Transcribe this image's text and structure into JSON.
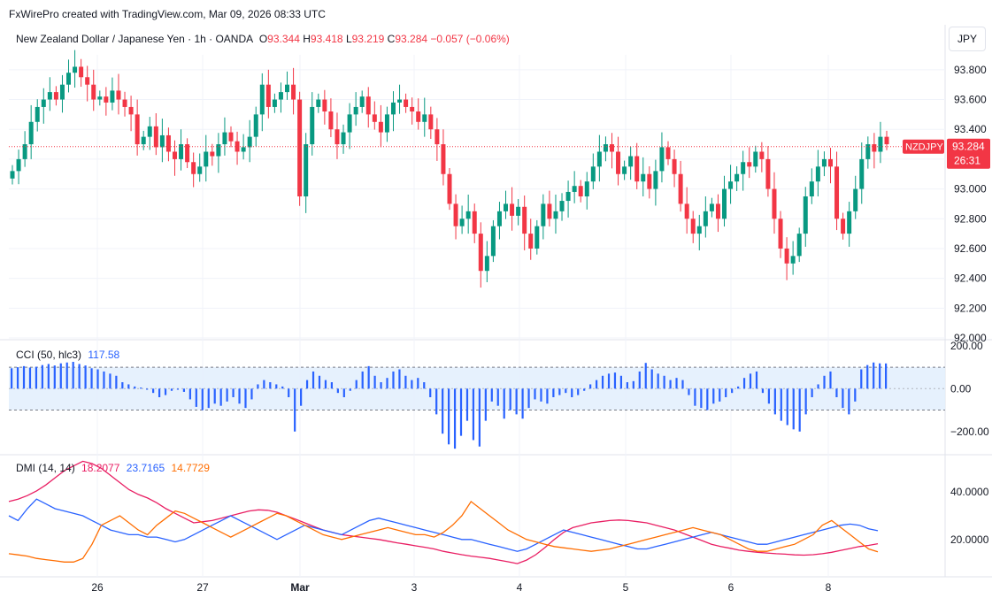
{
  "credit": "FxWirePro created with TradingView.com, Mar 09, 2026 08:33 UTC",
  "header": {
    "symbol": "New Zealand Dollar / Japanese Yen · 1h · OANDA",
    "o_label": "O",
    "o": "93.344",
    "h_label": "H",
    "h": "93.418",
    "l_label": "L",
    "l": "93.219",
    "c_label": "C",
    "c": "93.284",
    "change": "−0.057 (−0.06%)"
  },
  "currency": "JPY",
  "price_tag": {
    "ticker": "NZDJPY",
    "price": "93.284",
    "countdown": "26:31"
  },
  "colors": {
    "up": "#089981",
    "down": "#f23645",
    "cci": "#2962ff",
    "di_plus": "#2962ff",
    "di_minus": "#ff6d00",
    "adx": "#e91e63"
  },
  "cci": {
    "label": "CCI (50, hlc3)",
    "value": "117.58"
  },
  "dmi": {
    "label": "DMI (14, 14)",
    "adx": "18.2077",
    "di_plus": "23.7165",
    "di_minus": "14.7729"
  },
  "chart_data": [
    {
      "type": "candlestick",
      "name": "price",
      "ylim": [
        92.0,
        93.9
      ],
      "y_ticks": [
        "93.800",
        "93.600",
        "93.400",
        "93.200",
        "93.000",
        "92.800",
        "92.600",
        "92.400",
        "92.200",
        "92.000"
      ],
      "y_tick_values": [
        93.8,
        93.6,
        93.4,
        93.2,
        93.0,
        92.8,
        92.6,
        92.4,
        92.2,
        92.0
      ],
      "x_ticks": [
        "26",
        "27",
        "Mar",
        "3",
        "4",
        "5",
        "6",
        "8"
      ],
      "last_price": 93.284,
      "closes": [
        93.12,
        93.2,
        93.3,
        93.45,
        93.55,
        93.6,
        93.65,
        93.6,
        93.7,
        93.78,
        93.82,
        93.75,
        93.7,
        93.6,
        93.62,
        93.58,
        93.66,
        93.6,
        93.55,
        93.5,
        93.3,
        93.35,
        93.42,
        93.28,
        93.36,
        93.25,
        93.2,
        93.3,
        93.18,
        93.1,
        93.15,
        93.25,
        93.22,
        93.3,
        93.38,
        93.32,
        93.25,
        93.28,
        93.35,
        93.5,
        93.7,
        93.55,
        93.6,
        93.65,
        93.7,
        93.6,
        92.95,
        93.3,
        93.55,
        93.6,
        93.52,
        93.4,
        93.3,
        93.38,
        93.5,
        93.55,
        93.62,
        93.5,
        93.45,
        93.38,
        93.5,
        93.58,
        93.6,
        93.55,
        93.52,
        93.45,
        93.5,
        93.4,
        93.3,
        93.1,
        92.9,
        92.75,
        92.8,
        92.85,
        92.7,
        92.45,
        92.55,
        92.75,
        92.85,
        92.9,
        92.82,
        92.88,
        92.7,
        92.6,
        92.75,
        92.9,
        92.8,
        92.85,
        92.92,
        92.98,
        93.02,
        92.95,
        93.05,
        93.15,
        93.25,
        93.3,
        93.25,
        93.1,
        93.15,
        93.22,
        93.05,
        93.1,
        93.0,
        93.12,
        93.28,
        93.2,
        93.1,
        92.9,
        92.8,
        92.7,
        92.75,
        92.85,
        92.9,
        92.8,
        93.0,
        93.05,
        93.1,
        93.18,
        93.15,
        93.25,
        93.2,
        93.0,
        92.8,
        92.6,
        92.5,
        92.55,
        92.7,
        92.95,
        93.05,
        93.15,
        93.2,
        93.15,
        92.8,
        92.7,
        92.85,
        93.0,
        93.2,
        93.3,
        93.25,
        93.35,
        93.3
      ],
      "last_open": 93.344,
      "last_high": 93.418,
      "last_low": 93.219
    },
    {
      "type": "bar",
      "name": "CCI",
      "ylim": [
        -300,
        220
      ],
      "y_ticks": [
        "200.00",
        "0.00",
        "−200.00"
      ],
      "y_tick_values": [
        200,
        0,
        -200
      ],
      "band": [
        100,
        -100
      ],
      "values": [
        95,
        100,
        105,
        98,
        102,
        110,
        115,
        108,
        118,
        122,
        125,
        115,
        108,
        95,
        90,
        80,
        70,
        60,
        30,
        20,
        10,
        5,
        -5,
        -20,
        -40,
        -30,
        -10,
        -5,
        -15,
        -50,
        -85,
        -100,
        -90,
        -70,
        -80,
        -60,
        -40,
        -70,
        -90,
        -50,
        20,
        40,
        30,
        20,
        10,
        -40,
        -200,
        -80,
        40,
        80,
        60,
        40,
        30,
        -20,
        -40,
        -10,
        40,
        80,
        105,
        60,
        30,
        50,
        80,
        90,
        60,
        40,
        50,
        30,
        -40,
        -120,
        -210,
        -260,
        -280,
        -220,
        -150,
        -240,
        -270,
        -150,
        -60,
        -80,
        -140,
        -100,
        -120,
        -140,
        -90,
        -50,
        -60,
        -70,
        -40,
        -30,
        -20,
        -40,
        -30,
        -10,
        20,
        40,
        60,
        70,
        75,
        60,
        30,
        35,
        80,
        120,
        90,
        70,
        60,
        40,
        50,
        40,
        -30,
        -80,
        -90,
        -100,
        -70,
        -60,
        -40,
        -20,
        10,
        50,
        70,
        80,
        -20,
        -70,
        -120,
        -150,
        -170,
        -190,
        -200,
        -120,
        -40,
        20,
        60,
        80,
        -40,
        -90,
        -120,
        -60,
        90,
        110,
        122,
        118,
        117.58
      ]
    },
    {
      "type": "line",
      "name": "DMI",
      "ylim": [
        5,
        55
      ],
      "y_ticks": [
        "40.0000",
        "20.0000"
      ],
      "y_tick_values": [
        40,
        20
      ],
      "series": [
        {
          "name": "ADX",
          "values": [
            36,
            37,
            38.5,
            40.5,
            43,
            46,
            49,
            51,
            53,
            52,
            50,
            47,
            44,
            41,
            39,
            37.5,
            35.5,
            33,
            31,
            29,
            27,
            27.5,
            28,
            29,
            30,
            31,
            32,
            32.5,
            32.3,
            31.5,
            30,
            28.6,
            27,
            25.5,
            24,
            23,
            22,
            21.5,
            21,
            20.5,
            20,
            19.3,
            18.6,
            18,
            17.3,
            16.7,
            16,
            15,
            14.3,
            13.6,
            13,
            12.5,
            12,
            11.3,
            10.6,
            9.8,
            11.3,
            13.6,
            16.6,
            20,
            23,
            25,
            26,
            27,
            27.5,
            28,
            28.2,
            28,
            27.5,
            27,
            26,
            25,
            24,
            22.5,
            21,
            19.5,
            18,
            17,
            16.3,
            15.5,
            15,
            14.6,
            14.3,
            14,
            13.8,
            13.5,
            13.4,
            13.6,
            14,
            14.6,
            15.4,
            16.2,
            17,
            17.5,
            18.2
          ]
        },
        {
          "name": "DI+",
          "values": [
            30,
            28,
            33,
            37,
            35,
            33,
            32,
            31,
            30,
            28,
            26,
            24,
            23,
            22,
            22,
            21,
            21,
            20,
            19,
            20,
            22,
            24,
            26,
            28,
            30,
            28,
            26,
            24,
            22,
            20,
            22,
            24,
            26,
            25,
            24,
            23,
            22,
            24,
            26,
            28,
            29,
            28,
            27,
            26,
            25,
            24,
            23,
            22,
            21,
            20,
            20,
            19,
            18,
            17,
            16,
            15,
            16,
            18,
            20,
            22,
            24,
            23,
            22,
            21,
            20,
            19,
            18,
            17,
            16,
            16,
            17,
            18,
            19,
            20,
            21,
            22,
            23,
            22,
            21,
            20,
            19,
            18,
            18,
            19,
            20,
            21,
            22,
            23,
            24,
            25,
            26,
            26.5,
            26,
            24.5,
            23.7
          ]
        },
        {
          "name": "DI−",
          "values": [
            14,
            13.5,
            13,
            12,
            11.5,
            11,
            10.5,
            10.5,
            12,
            18,
            26,
            28,
            30,
            27,
            24,
            22,
            26,
            29,
            32,
            31,
            29,
            27,
            25,
            23,
            21,
            23,
            25,
            27,
            29,
            31,
            30,
            28,
            26,
            24,
            22,
            21,
            20,
            21,
            22,
            23,
            24,
            25,
            24,
            23,
            22,
            22,
            21,
            23,
            26,
            30,
            36,
            33,
            30,
            27,
            24,
            22,
            20,
            19,
            18,
            17,
            16.5,
            16,
            15.5,
            15,
            15.5,
            16,
            17,
            18,
            19,
            20,
            21,
            22,
            23,
            24,
            25,
            24,
            23,
            22,
            20,
            18,
            16,
            15,
            15,
            16,
            17,
            18,
            20,
            22,
            26,
            28,
            25,
            22,
            19,
            16,
            14.8
          ]
        }
      ]
    }
  ]
}
